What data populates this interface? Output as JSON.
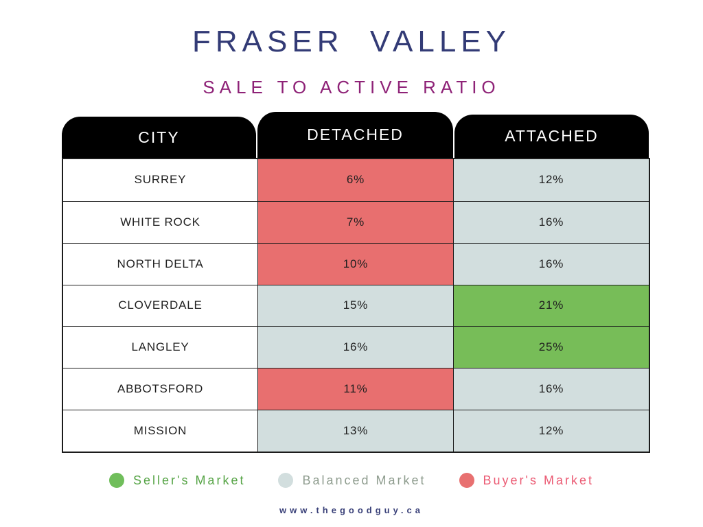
{
  "title": "FRASER  VALLEY",
  "subtitle": "SALE TO ACTIVE RATIO",
  "footer_url": "www.thegoodguy.ca",
  "colors": {
    "header_bg": "#000000",
    "header_text": "#FFFFFF",
    "title": "#333B76",
    "subtitle": "#8E2277",
    "footer": "#3A4179",
    "table_border": "#1C1C1C",
    "buyer": "#E86F6F",
    "balanced": "#D2DEDE",
    "seller": "#77BD58",
    "city_bg": "#FFFFFF"
  },
  "chart_data": {
    "type": "table",
    "title": "FRASER VALLEY",
    "subtitle": "SALE TO ACTIVE RATIO",
    "columns": [
      "CITY",
      "DETACHED",
      "ATTACHED"
    ],
    "rows": [
      {
        "city": "SURREY",
        "detached_pct": 6,
        "detached_label": "6%",
        "detached_status": "buyer",
        "attached_pct": 12,
        "attached_label": "12%",
        "attached_status": "balanced"
      },
      {
        "city": "WHITE ROCK",
        "detached_pct": 7,
        "detached_label": "7%",
        "detached_status": "buyer",
        "attached_pct": 16,
        "attached_label": "16%",
        "attached_status": "balanced"
      },
      {
        "city": "NORTH DELTA",
        "detached_pct": 10,
        "detached_label": "10%",
        "detached_status": "buyer",
        "attached_pct": 16,
        "attached_label": "16%",
        "attached_status": "balanced"
      },
      {
        "city": "CLOVERDALE",
        "detached_pct": 15,
        "detached_label": "15%",
        "detached_status": "balanced",
        "attached_pct": 21,
        "attached_label": "21%",
        "attached_status": "seller"
      },
      {
        "city": "LANGLEY",
        "detached_pct": 16,
        "detached_label": "16%",
        "detached_status": "balanced",
        "attached_pct": 25,
        "attached_label": "25%",
        "attached_status": "seller"
      },
      {
        "city": "ABBOTSFORD",
        "detached_pct": 11,
        "detached_label": "11%",
        "detached_status": "buyer",
        "attached_pct": 16,
        "attached_label": "16%",
        "attached_status": "balanced"
      },
      {
        "city": "MISSION",
        "detached_pct": 13,
        "detached_label": "13%",
        "detached_status": "balanced",
        "attached_pct": 12,
        "attached_label": "12%",
        "attached_status": "balanced"
      }
    ],
    "legend": [
      {
        "label": "Seller's Market",
        "status": "seller",
        "dot_color": "#70BE5B",
        "text_color": "#56A446"
      },
      {
        "label": "Balanced Market",
        "status": "balanced",
        "dot_color": "#D2DEDE",
        "text_color": "#8E9C8E"
      },
      {
        "label": "Buyer's Market",
        "status": "buyer",
        "dot_color": "#E87070",
        "text_color": "#EB5A73"
      }
    ],
    "status_color_map": {
      "buyer": "#E86F6F",
      "balanced": "#D2DEDE",
      "seller": "#77BD58"
    }
  }
}
